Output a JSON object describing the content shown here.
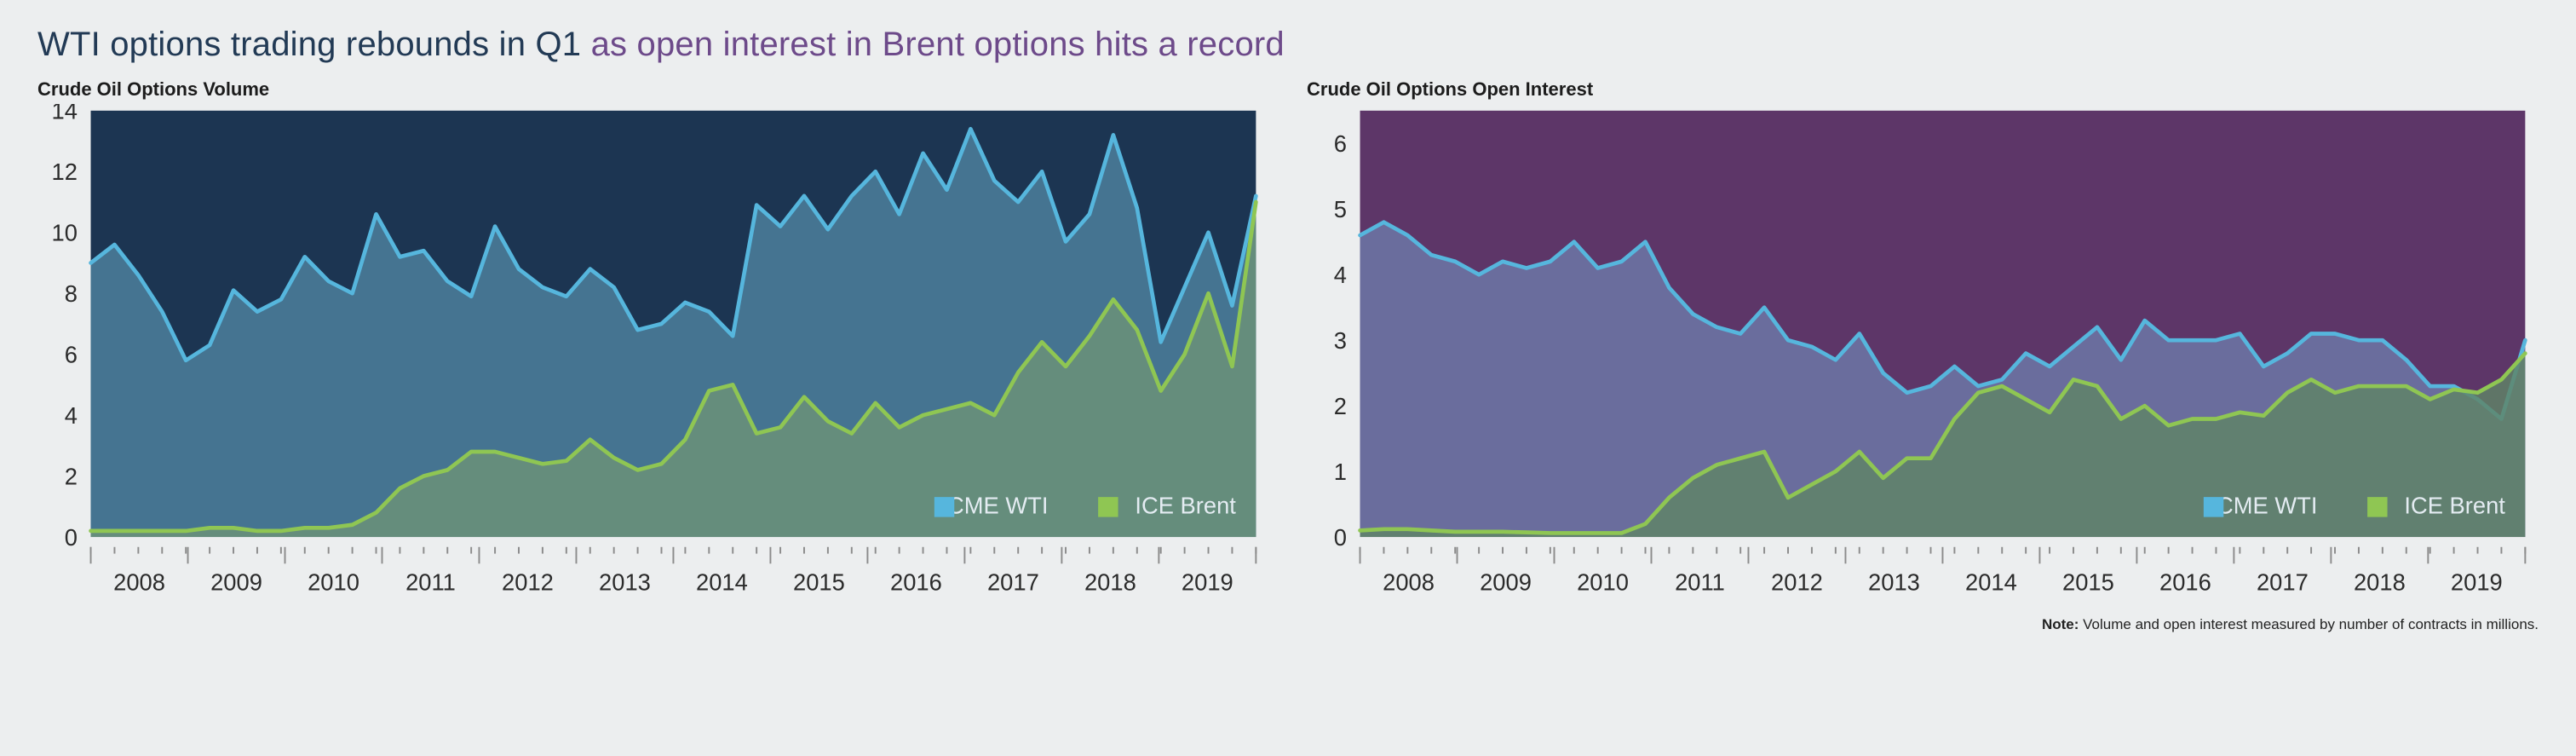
{
  "title_a": "WTI options trading rebounds in Q1 ",
  "title_b": "as open interest in Brent options hits a record",
  "title_colors": {
    "a": "#223a55",
    "b": "#6d4a8a"
  },
  "note_label": "Note:",
  "note_text": " Volume and open interest measured by number of contracts in millions.",
  "x_years": [
    "2008",
    "2009",
    "2010",
    "2011",
    "2012",
    "2013",
    "2014",
    "2015",
    "2016",
    "2017",
    "2018",
    "2019"
  ],
  "volume_chart": {
    "title": "Crude Oil Options Volume",
    "type": "area",
    "ylim": [
      0,
      14
    ],
    "ytick_step": 2,
    "background_color": "#1c3552",
    "grid_color": "none",
    "series": [
      {
        "name": "CME WTI",
        "legend_label": "CME WTI",
        "line_color": "#56b6dd",
        "fill_color": "#4b7d9a",
        "fill_opacity": 0.88,
        "line_width": 2.4,
        "values": [
          9.0,
          9.6,
          8.6,
          7.4,
          5.8,
          6.3,
          8.1,
          7.4,
          7.8,
          9.2,
          8.4,
          8.0,
          10.6,
          9.2,
          9.4,
          8.4,
          7.9,
          10.2,
          8.8,
          8.2,
          7.9,
          8.8,
          8.2,
          6.8,
          7.0,
          7.7,
          7.4,
          6.6,
          10.9,
          10.2,
          11.2,
          10.1,
          11.2,
          12.0,
          10.6,
          12.6,
          11.4,
          13.4,
          11.7,
          11.0,
          12.0,
          9.7,
          10.6,
          13.2,
          10.8,
          6.4,
          8.2,
          10.0,
          7.6,
          11.2
        ]
      },
      {
        "name": "ICE Brent",
        "legend_label": "ICE Brent",
        "line_color": "#8fc653",
        "fill_color": "#6d9277",
        "fill_opacity": 0.82,
        "line_width": 2.4,
        "values": [
          0.2,
          0.2,
          0.2,
          0.2,
          0.2,
          0.3,
          0.3,
          0.2,
          0.2,
          0.3,
          0.3,
          0.4,
          0.8,
          1.6,
          2.0,
          2.2,
          2.8,
          2.8,
          2.6,
          2.4,
          2.5,
          3.2,
          2.6,
          2.2,
          2.4,
          3.2,
          4.8,
          5.0,
          3.4,
          3.6,
          4.6,
          3.8,
          3.4,
          4.4,
          3.6,
          4.0,
          4.2,
          4.4,
          4.0,
          5.4,
          6.4,
          5.6,
          6.6,
          7.8,
          6.8,
          4.8,
          6.0,
          8.0,
          5.6,
          11.0
        ]
      }
    ],
    "legend": {
      "position": "bottom-right",
      "items": [
        "CME WTI",
        "ICE Brent"
      ],
      "swatch_colors": [
        "#56b6dd",
        "#8fc653"
      ],
      "text_color": "#e4ecf2",
      "fontsize": 14
    }
  },
  "oi_chart": {
    "title": "Crude Oil Options Open Interest",
    "type": "area",
    "ylim": [
      0,
      6.5
    ],
    "yticks": [
      0,
      1,
      2,
      3,
      4,
      5,
      6
    ],
    "background_color": "#5d3668",
    "grid_color": "none",
    "series": [
      {
        "name": "CME WTI",
        "legend_label": "CME WTI",
        "line_color": "#56b6dd",
        "fill_color": "#6d7aa8",
        "fill_opacity": 0.82,
        "line_width": 2.4,
        "values": [
          4.6,
          4.8,
          4.6,
          4.3,
          4.2,
          4.0,
          4.2,
          4.1,
          4.2,
          4.5,
          4.1,
          4.2,
          4.5,
          3.8,
          3.4,
          3.2,
          3.1,
          3.5,
          3.0,
          2.9,
          2.7,
          3.1,
          2.5,
          2.2,
          2.3,
          2.6,
          2.3,
          2.4,
          2.8,
          2.6,
          2.9,
          3.2,
          2.7,
          3.3,
          3.0,
          3.0,
          3.0,
          3.1,
          2.6,
          2.8,
          3.1,
          3.1,
          3.0,
          3.0,
          2.7,
          2.3,
          2.3,
          2.1,
          1.8,
          3.0
        ]
      },
      {
        "name": "ICE Brent",
        "legend_label": "ICE Brent",
        "line_color": "#8fc653",
        "fill_color": "#5f8466",
        "fill_opacity": 0.82,
        "line_width": 2.4,
        "values": [
          0.1,
          0.12,
          0.12,
          0.1,
          0.08,
          0.08,
          0.08,
          0.07,
          0.06,
          0.06,
          0.06,
          0.06,
          0.2,
          0.6,
          0.9,
          1.1,
          1.2,
          1.3,
          0.6,
          0.8,
          1.0,
          1.3,
          0.9,
          1.2,
          1.2,
          1.8,
          2.2,
          2.3,
          2.1,
          1.9,
          2.4,
          2.3,
          1.8,
          2.0,
          1.7,
          1.8,
          1.8,
          1.9,
          1.85,
          2.2,
          2.4,
          2.2,
          2.3,
          2.3,
          2.3,
          2.1,
          2.25,
          2.2,
          2.4,
          2.8
        ]
      }
    ],
    "legend": {
      "position": "bottom-right",
      "items": [
        "CME WTI",
        "ICE Brent"
      ],
      "swatch_colors": [
        "#56b6dd",
        "#8fc653"
      ],
      "text_color": "#e4ecf2",
      "fontsize": 14
    }
  },
  "axis_style": {
    "tick_fontsize": 14,
    "tick_color": "#2b2b2b",
    "year_tick_color": "#8c8c8c"
  }
}
